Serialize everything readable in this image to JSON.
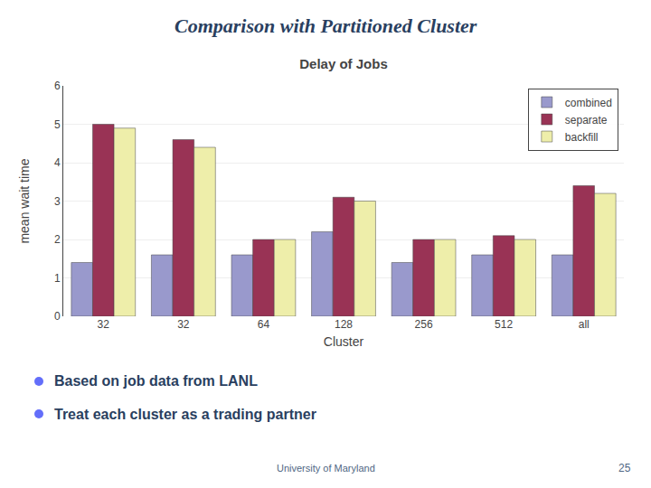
{
  "chart_data": {
    "type": "bar",
    "title": "Delay of Jobs",
    "xlabel": "Cluster",
    "ylabel": "mean wait time",
    "categories": [
      "32",
      "32",
      "64",
      "128",
      "256",
      "512",
      "all"
    ],
    "series": [
      {
        "name": "combined",
        "color": "#9999cc",
        "values": [
          1.4,
          1.6,
          1.6,
          2.2,
          1.4,
          1.6,
          1.6
        ]
      },
      {
        "name": "separate",
        "color": "#993355",
        "values": [
          5.0,
          4.6,
          2.0,
          3.1,
          2.0,
          2.1,
          3.4
        ]
      },
      {
        "name": "backfill",
        "color": "#eeeeaa",
        "values": [
          4.9,
          4.4,
          2.0,
          3.0,
          2.0,
          2.0,
          3.2
        ]
      }
    ],
    "ylim": [
      0,
      6
    ],
    "yticks": [
      0,
      1,
      2,
      3,
      4,
      5,
      6
    ],
    "grid": true,
    "legend": "upper right",
    "annotations": [
      "Comparison with Partitioned Cluster",
      "Based on job data from LANL",
      "Treat each cluster as a trading partner",
      "University of Maryland",
      "25"
    ]
  }
}
